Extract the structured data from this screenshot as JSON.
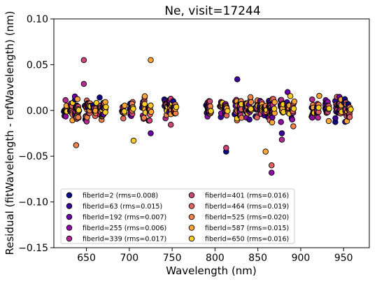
{
  "chart_data": {
    "type": "scatter",
    "title": "Ne, visit=17244",
    "xlabel": "Wavelength (nm)",
    "ylabel": "Residual (fitWavelength - refWavelength) (nm)",
    "xlim": [
      612,
      980
    ],
    "ylim": [
      -0.15,
      0.1
    ],
    "xticks": [
      650,
      700,
      750,
      800,
      850,
      900,
      950
    ],
    "xtick_labels": [
      "650",
      "700",
      "750",
      "800",
      "850",
      "900",
      "950"
    ],
    "yticks": [
      -0.15,
      -0.1,
      -0.05,
      0.0,
      0.05,
      0.1
    ],
    "ytick_labels": [
      "−0.15",
      "−0.10",
      "−0.05",
      "0.00",
      "0.05",
      "0.10"
    ],
    "grid": false,
    "legend_placement": "lower-left",
    "legend_columns": 2,
    "lines_nm": [
      626,
      633,
      638,
      640,
      650,
      653,
      660,
      667,
      671,
      693,
      703,
      717,
      724,
      743,
      748,
      753,
      792,
      794,
      808,
      813,
      825,
      830,
      837,
      841,
      849,
      854,
      859,
      864,
      865,
      868,
      878,
      886,
      891,
      914,
      920,
      930,
      932,
      942,
      946,
      953,
      957
    ],
    "series": [
      {
        "name": "fiberId=2 (rms=0.008)",
        "color": "#0d0887"
      },
      {
        "name": "fiberId=63 (rms=0.015)",
        "color": "#3a049a"
      },
      {
        "name": "fiberId=192 (rms=0.007)",
        "color": "#6a00a8"
      },
      {
        "name": "fiberId=255 (rms=0.006)",
        "color": "#8f0da4"
      },
      {
        "name": "fiberId=339 (rms=0.017)",
        "color": "#b12a90"
      },
      {
        "name": "fiberId=401 (rms=0.016)",
        "color": "#cc4778"
      },
      {
        "name": "fiberId=464 (rms=0.019)",
        "color": "#e16462"
      },
      {
        "name": "fiberId=525 (rms=0.020)",
        "color": "#f2844b"
      },
      {
        "name": "fiberId=587 (rms=0.015)",
        "color": "#fca636"
      },
      {
        "name": "fiberId=650 (rms=0.016)",
        "color": "#fcce25"
      }
    ],
    "notable_points": [
      {
        "x": 647,
        "y": 0.055
      },
      {
        "x": 725,
        "y": 0.055
      },
      {
        "x": 826,
        "y": 0.034
      },
      {
        "x": 647,
        "y": 0.029
      },
      {
        "x": 638,
        "y": -0.038
      },
      {
        "x": 813,
        "y": -0.045
      },
      {
        "x": 866,
        "y": -0.068
      },
      {
        "x": 866,
        "y": -0.06
      },
      {
        "x": 705,
        "y": -0.033
      },
      {
        "x": 725,
        "y": -0.025
      },
      {
        "x": 813,
        "y": -0.041
      },
      {
        "x": 859,
        "y": -0.045
      },
      {
        "x": 878,
        "y": -0.025
      },
      {
        "x": 878,
        "y": -0.032
      }
    ]
  }
}
